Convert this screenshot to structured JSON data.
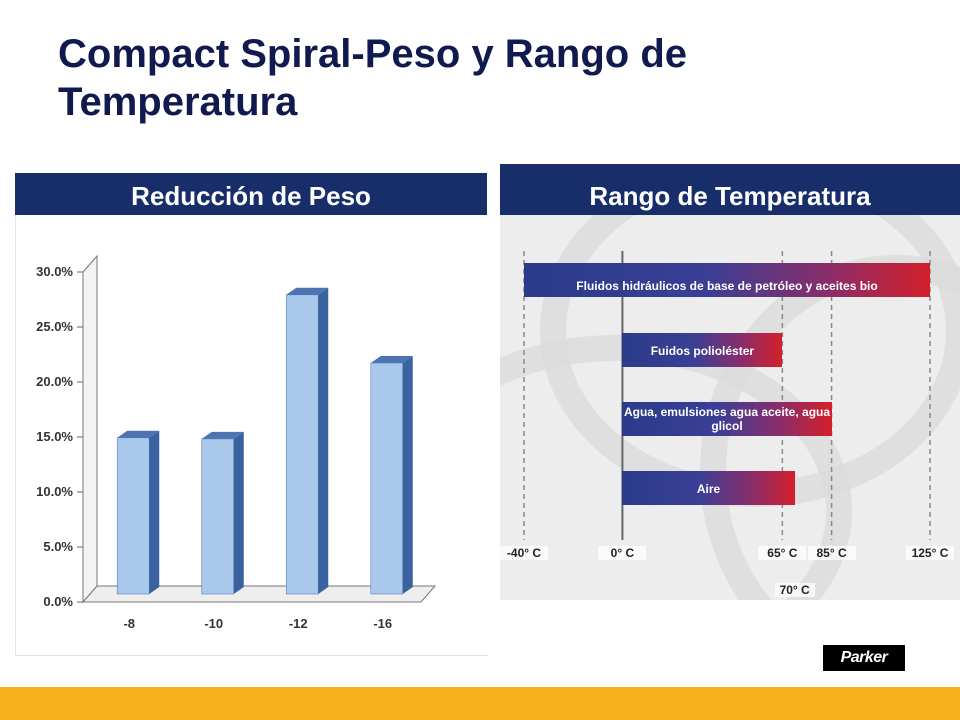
{
  "title": "Compact Spiral-Peso y Rango de Temperatura",
  "left_panel": {
    "header": "Reducción de Peso"
  },
  "right_panel": {
    "header": "Rango de Temperatura",
    "ticks": [
      "-40° C",
      "0° C",
      "65° C",
      "85° C",
      "125° C"
    ],
    "extra_tick": "70° C",
    "bars": [
      {
        "label": "Fluidos hidráulicos de base de petróleo y aceites bio",
        "from": -40,
        "to": 125
      },
      {
        "label": "Fuidos polioléster",
        "from": 0,
        "to": 65
      },
      {
        "label": "Agua, emulsiones agua aceite, agua glicol",
        "from": 0,
        "to": 85
      },
      {
        "label": "Aire",
        "from": 0,
        "to": 70
      }
    ]
  },
  "logo": {
    "text": "Parker"
  },
  "colors": {
    "header": "#182e6a",
    "footer": "#f5b21b",
    "bar_face": "#a9c8ec",
    "bar_side": "#3a62a0"
  },
  "chart_data": {
    "type": "bar",
    "categories": [
      "-8",
      "-10",
      "-12",
      "-16"
    ],
    "values": [
      14.2,
      14.1,
      27.2,
      21.0
    ],
    "yticks": [
      "0.0%",
      "5.0%",
      "10.0%",
      "15.0%",
      "20.0%",
      "25.0%",
      "30.0%"
    ],
    "ylim": [
      0,
      30
    ],
    "grid": false,
    "title": "",
    "xlabel": "",
    "ylabel": ""
  }
}
